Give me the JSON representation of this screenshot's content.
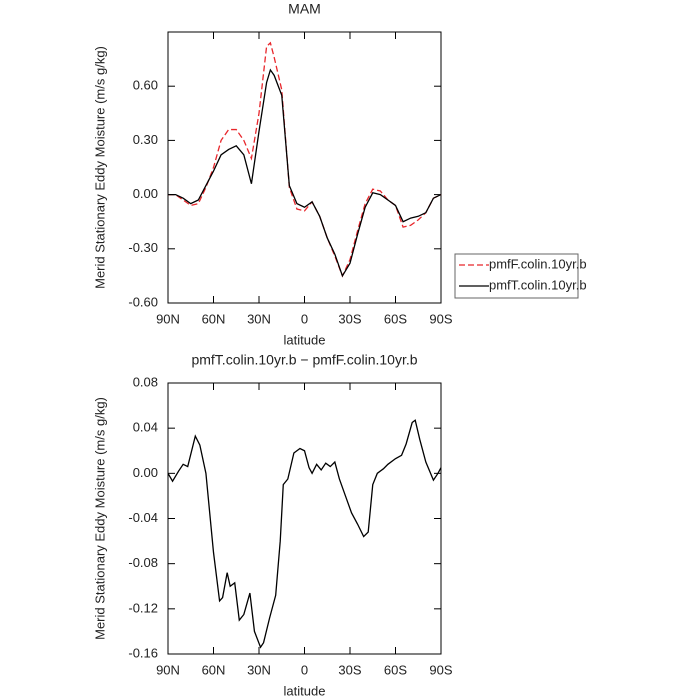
{
  "chart_data": [
    {
      "type": "line",
      "title": "MAM",
      "ylabel": "Merid Stationary Eddy Moisture (m/s g/kg)",
      "xlabel": "latitude",
      "x": [
        90,
        85,
        80,
        75,
        70,
        65,
        60,
        55,
        50,
        45,
        40,
        35,
        30,
        25,
        22.5,
        20,
        15,
        10,
        5,
        0,
        -5,
        -10,
        -15,
        -20,
        -25,
        -30,
        -35,
        -40,
        -45,
        -50,
        -55,
        -60,
        -65,
        -70,
        -75,
        -80,
        -85,
        -90
      ],
      "xlim": [
        90,
        -90
      ],
      "xticks": [
        {
          "value": 90,
          "label": "90N"
        },
        {
          "value": 60,
          "label": "60N"
        },
        {
          "value": 30,
          "label": "30N"
        },
        0,
        {
          "value": -30,
          "label": "30S"
        },
        {
          "value": -60,
          "label": "60S"
        },
        {
          "value": -90,
          "label": "90S"
        }
      ],
      "ylim": [
        -0.6,
        0.9
      ],
      "yticks": [
        {
          "value": -0.6,
          "label": "-0.60"
        },
        {
          "value": -0.3,
          "label": "-0.30"
        },
        {
          "value": 0,
          "label": "0.00"
        },
        {
          "value": 0.3,
          "label": "0.30"
        },
        {
          "value": 0.6,
          "label": "0.60"
        }
      ],
      "legend": "right",
      "series": [
        {
          "name": "pmfF.colin.10yr.b",
          "color": "#e8262b",
          "dash": true,
          "values": [
            0,
            0,
            -0.03,
            -0.06,
            -0.05,
            0.04,
            0.15,
            0.3,
            0.36,
            0.36,
            0.3,
            0.2,
            0.45,
            0.82,
            0.84,
            0.76,
            0.58,
            0.04,
            -0.08,
            -0.09,
            -0.04,
            -0.12,
            -0.24,
            -0.34,
            -0.45,
            -0.36,
            -0.2,
            -0.05,
            0.03,
            0.02,
            -0.03,
            -0.06,
            -0.18,
            -0.17,
            -0.14,
            -0.1,
            -0.02,
            0
          ]
        },
        {
          "name": "pmfT.colin.10yr.b",
          "color": "#000000",
          "dash": false,
          "values": [
            0,
            0,
            -0.02,
            -0.05,
            -0.03,
            0.05,
            0.13,
            0.22,
            0.25,
            0.27,
            0.22,
            0.06,
            0.35,
            0.62,
            0.69,
            0.66,
            0.55,
            0.05,
            -0.05,
            -0.07,
            -0.04,
            -0.12,
            -0.24,
            -0.33,
            -0.45,
            -0.38,
            -0.22,
            -0.07,
            0.01,
            0,
            -0.03,
            -0.06,
            -0.15,
            -0.13,
            -0.12,
            -0.1,
            -0.02,
            0
          ]
        }
      ]
    },
    {
      "type": "line",
      "title": "pmfT.colin.10yr.b − pmfF.colin.10yr.b",
      "ylabel": "Merid Stationary Eddy Moisture (m/s g/kg)",
      "xlabel": "latitude",
      "x": [
        90,
        87,
        83,
        80,
        77,
        72,
        69,
        65,
        60,
        56,
        54,
        51,
        49,
        46,
        43,
        40,
        36,
        33,
        29,
        27,
        23,
        19,
        16,
        14,
        11,
        7,
        3,
        0,
        -3,
        -5,
        -8,
        -11,
        -14,
        -17,
        -20,
        -23,
        -27,
        -31,
        -35,
        -39,
        -42,
        -45,
        -48,
        -52,
        -55,
        -60,
        -64,
        -67,
        -71,
        -73,
        -76,
        -80,
        -85,
        -88,
        -90
      ],
      "xlim": [
        90,
        -90
      ],
      "xticks": [
        {
          "value": 90,
          "label": "90N"
        },
        {
          "value": 60,
          "label": "60N"
        },
        {
          "value": 30,
          "label": "30N"
        },
        0,
        {
          "value": -30,
          "label": "30S"
        },
        {
          "value": -60,
          "label": "60S"
        },
        {
          "value": -90,
          "label": "90S"
        }
      ],
      "ylim": [
        -0.16,
        0.08
      ],
      "yticks": [
        -0.16,
        -0.12,
        -0.08,
        -0.04,
        {
          "value": 0,
          "label": "0.00"
        },
        0.04,
        0.08
      ],
      "series": [
        {
          "color": "#000000",
          "dash": false,
          "values": [
            0,
            -0.007,
            0.002,
            0.008,
            0.006,
            0.033,
            0.025,
            0,
            -0.07,
            -0.113,
            -0.11,
            -0.088,
            -0.1,
            -0.097,
            -0.13,
            -0.125,
            -0.106,
            -0.14,
            -0.154,
            -0.15,
            -0.128,
            -0.108,
            -0.06,
            -0.01,
            -0.005,
            0.018,
            0.022,
            0.02,
            0.005,
            0,
            0.008,
            0.003,
            0.009,
            0.006,
            0.01,
            -0.005,
            -0.02,
            -0.035,
            -0.045,
            -0.056,
            -0.052,
            -0.01,
            0,
            0.004,
            0.008,
            0.013,
            0.016,
            0.026,
            0.045,
            0.047,
            0.03,
            0.01,
            -0.006,
            0,
            0.005
          ]
        }
      ]
    }
  ]
}
